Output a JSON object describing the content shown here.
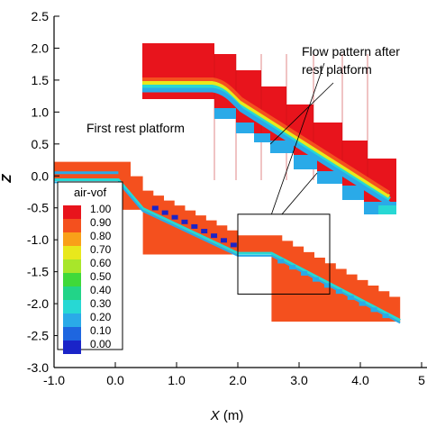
{
  "chart_data": {
    "type": "heatmap",
    "variable": "air-vof",
    "xlabel_var": "X",
    "xlabel_unit": " (m)",
    "ylabel_fragment": "Z",
    "xlim": [
      -1.0,
      5.0
    ],
    "ylim": [
      -3.0,
      2.5
    ],
    "x_ticks": [
      -1.0,
      0.0,
      1.0,
      2.0,
      3.0,
      4.0,
      5.0
    ],
    "x_tick_labels": [
      "-1.0",
      "0.0",
      "1.0",
      "2.0",
      "3.0",
      "4.0",
      "5"
    ],
    "y_ticks": [
      2.5,
      2.0,
      1.5,
      1.0,
      0.5,
      0.0,
      -0.5,
      -1.0,
      -1.5,
      -2.0,
      -2.5,
      -3.0
    ],
    "y_tick_labels": [
      "2.5",
      "2.0",
      "1.5",
      "1.0",
      "0.5",
      "0.0",
      "-0.5",
      "-1.0",
      "-1.5",
      "-2.0",
      "-2.5",
      "-3.0"
    ],
    "legend": {
      "title": "air-vof",
      "levels": [
        {
          "label": "1.00",
          "color": "#e8141c"
        },
        {
          "label": "0.90",
          "color": "#f4501e"
        },
        {
          "label": "0.80",
          "color": "#f9a019"
        },
        {
          "label": "0.70",
          "color": "#e8e81c"
        },
        {
          "label": "0.60",
          "color": "#a8e62a"
        },
        {
          "label": "0.50",
          "color": "#3fd93a"
        },
        {
          "label": "0.40",
          "color": "#22d488"
        },
        {
          "label": "0.30",
          "color": "#27d8d4"
        },
        {
          "label": "0.20",
          "color": "#2aaae8"
        },
        {
          "label": "0.10",
          "color": "#1e66e0"
        },
        {
          "label": "0.00",
          "color": "#1a24c8"
        }
      ]
    },
    "flow_surface": {
      "description_points_x": [
        -1.0,
        0.05,
        0.45,
        2.0,
        2.55,
        4.65
      ],
      "description_points_z": [
        0.1,
        0.1,
        -0.35,
        -1.05,
        -1.05,
        -2.1
      ]
    },
    "zoom_box": {
      "x": [
        2.0,
        3.5
      ],
      "z": [
        -1.85,
        -0.6
      ]
    },
    "annotations": {
      "flow_pattern": [
        "Flow pattern after",
        "rest platform"
      ],
      "first_rest": "First rest platform"
    },
    "colors": {
      "mixture": "#f4501e",
      "air": "#e8141c",
      "interface_blue": "#2aaae8",
      "interface_cyan": "#27d8d4",
      "deep_blue": "#1a24c8"
    }
  }
}
